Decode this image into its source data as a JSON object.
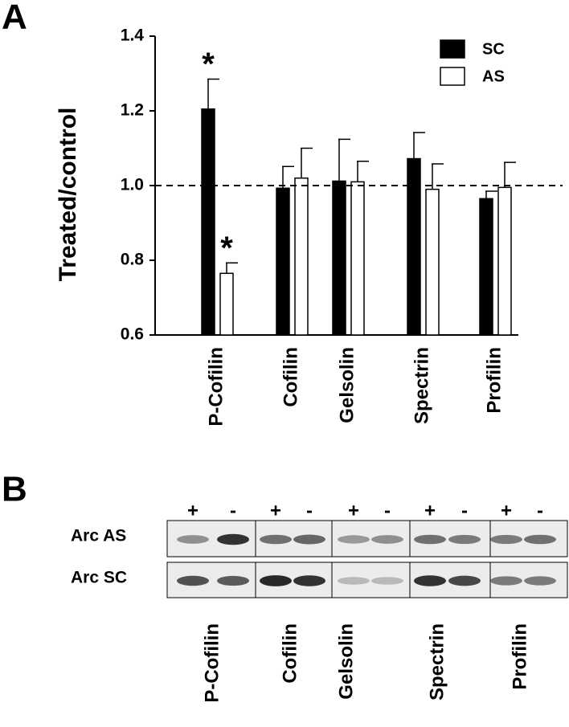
{
  "chart_data": {
    "type": "bar",
    "panel": "A",
    "y_label": "Treated/control",
    "categories": [
      "P-Cofilin",
      "Cofilin",
      "Gelsolin",
      "Spectrin",
      "Profilin"
    ],
    "series": [
      {
        "name": "SC",
        "color": "#000000",
        "values": [
          1.205,
          0.993,
          1.012,
          1.072,
          0.965
        ],
        "errors": [
          0.08,
          0.058,
          0.112,
          0.07,
          0.02
        ],
        "markers": [
          "*",
          null,
          null,
          null,
          null
        ]
      },
      {
        "name": "AS",
        "color": "#ffffff",
        "values": [
          0.765,
          1.02,
          1.01,
          0.99,
          0.995
        ],
        "errors": [
          0.028,
          0.08,
          0.055,
          0.068,
          0.067
        ],
        "markers": [
          "*",
          null,
          null,
          null,
          null
        ]
      }
    ],
    "ylim": [
      0.6,
      1.4
    ],
    "yticks": [
      {
        "value": 0.6,
        "label": "0.6"
      },
      {
        "value": 0.8,
        "label": "0.8"
      },
      {
        "value": 1.0,
        "label": "1.0"
      },
      {
        "value": 1.2,
        "label": "1.2"
      },
      {
        "value": 1.4,
        "label": "1.4"
      }
    ],
    "reference_line": 1.0,
    "legend": "top-right"
  },
  "blot": {
    "panel": "B",
    "rows": [
      "Arc AS",
      "Arc SC"
    ],
    "lanes": [
      "+",
      "-",
      "+",
      "-",
      "+",
      "-",
      "+",
      "-",
      "+",
      "-"
    ],
    "proteins": [
      "P-Cofilin",
      "Cofilin",
      "Gelsolin",
      "Spectrin",
      "Profilin"
    ]
  }
}
